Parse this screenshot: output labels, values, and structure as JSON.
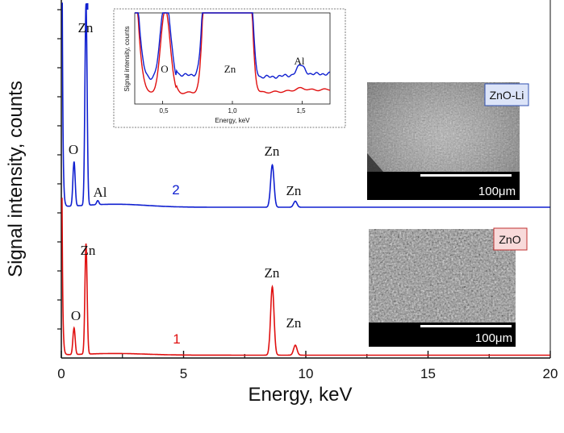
{
  "chart_data": {
    "type": "line",
    "xlabel": "Energy, keV",
    "ylabel": "Signal intensity, counts",
    "xlim": [
      0,
      20
    ],
    "x_ticks": [
      "0",
      "5",
      "10",
      "15",
      "20"
    ],
    "grid": false,
    "colors": {
      "series_1": "#e01010",
      "series_2": "#1020d0"
    },
    "series": [
      {
        "name": "1",
        "sample": "ZnO",
        "peaks": [
          {
            "label": "O",
            "energy": 0.52,
            "relative_height": 0.24
          },
          {
            "label": "Zn",
            "energy": 1.01,
            "relative_height": 1.0
          },
          {
            "label": "Zn",
            "energy": 8.63,
            "relative_height": 0.62
          },
          {
            "label": "Zn",
            "energy": 9.57,
            "relative_height": 0.09
          }
        ]
      },
      {
        "name": "2",
        "sample": "ZnO-Li",
        "peaks": [
          {
            "label": "O",
            "energy": 0.52,
            "relative_height": 0.22
          },
          {
            "label": "Zn",
            "energy": 1.01,
            "relative_height": 1.0
          },
          {
            "label": "Al",
            "energy": 1.49,
            "relative_height": 0.02
          },
          {
            "label": "Zn",
            "energy": 8.63,
            "relative_height": 0.21
          },
          {
            "label": "Zn",
            "energy": 9.57,
            "relative_height": 0.03
          }
        ]
      }
    ],
    "inset": {
      "xlabel": "Energy, keV",
      "ylabel": "Signal intensity, counts",
      "xlim": [
        0.3,
        1.7
      ],
      "x_ticks": [
        "0,5",
        "1,0",
        "1,5"
      ],
      "labels": [
        "O",
        "Zn",
        "Al"
      ]
    },
    "sem_images": [
      {
        "badge": "ZnO-Li",
        "scale_bar": "100μm"
      },
      {
        "badge": "ZnO",
        "scale_bar": "100μm"
      }
    ]
  }
}
